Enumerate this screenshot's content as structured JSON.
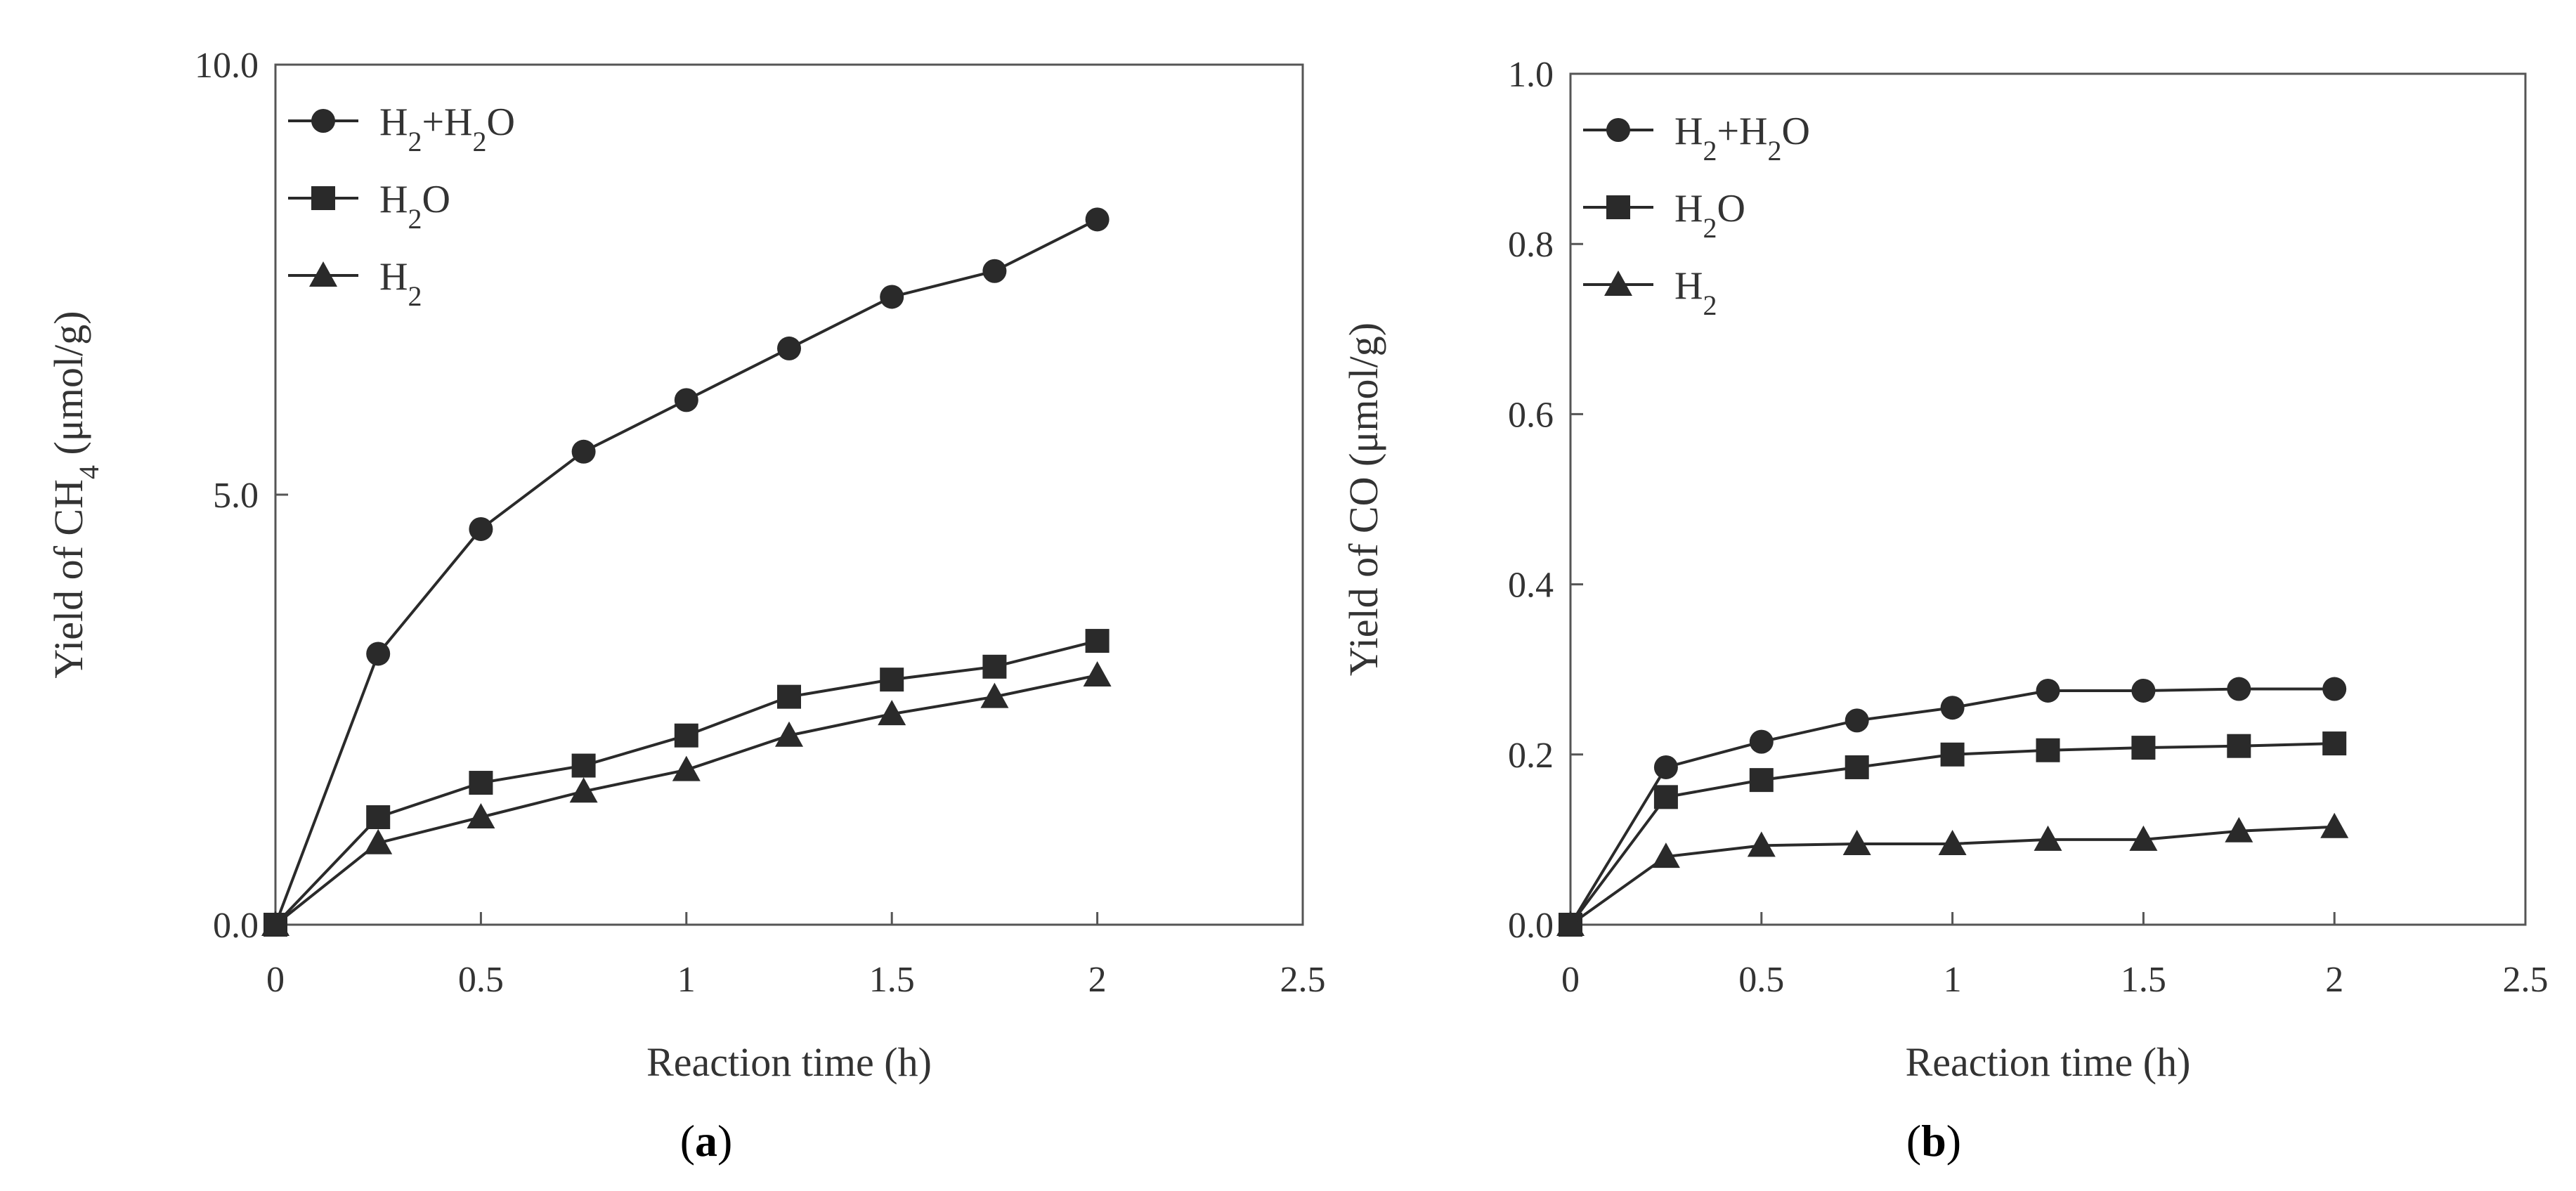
{
  "chart_data": [
    {
      "type": "line",
      "panel_label": "(a)",
      "x": [
        0,
        0.25,
        0.5,
        0.75,
        1,
        1.25,
        1.5,
        1.75,
        2
      ],
      "xlim": [
        0,
        2.5
      ],
      "ylim": [
        0,
        10
      ],
      "xticks": [
        "0",
        "0.5",
        "1",
        "1.5",
        "2",
        "2.5"
      ],
      "yticks": [
        "0.0",
        "5.0",
        "10.0"
      ],
      "xlabel": "Reaction time (h)",
      "ylabel": "Yield of CH4 (μmol/g)",
      "legend_position": "top-left",
      "series": [
        {
          "name": "H2+H2O",
          "marker": "circle",
          "values": [
            0,
            3.15,
            4.6,
            5.5,
            6.1,
            6.7,
            7.3,
            7.6,
            8.2
          ]
        },
        {
          "name": "H2O",
          "marker": "square",
          "values": [
            0,
            1.25,
            1.65,
            1.85,
            2.2,
            2.65,
            2.85,
            3.0,
            3.3
          ]
        },
        {
          "name": "H2",
          "marker": "triangle",
          "values": [
            0,
            0.95,
            1.25,
            1.55,
            1.8,
            2.2,
            2.45,
            2.65,
            2.9
          ]
        }
      ]
    },
    {
      "type": "line",
      "panel_label": "(b)",
      "x": [
        0,
        0.25,
        0.5,
        0.75,
        1,
        1.25,
        1.5,
        1.75,
        2
      ],
      "xlim": [
        0,
        2.5
      ],
      "ylim": [
        0,
        1.0
      ],
      "xticks": [
        "0",
        "0.5",
        "1",
        "1.5",
        "2",
        "2.5"
      ],
      "yticks": [
        "0.0",
        "0.2",
        "0.4",
        "0.6",
        "0.8",
        "1.0"
      ],
      "xlabel": "Reaction time (h)",
      "ylabel": "Yield of CO (μmol/g)",
      "legend_position": "top-left",
      "series": [
        {
          "name": "H2+H2O",
          "marker": "circle",
          "values": [
            0,
            0.185,
            0.215,
            0.24,
            0.255,
            0.275,
            0.275,
            0.277,
            0.277
          ]
        },
        {
          "name": "H2O",
          "marker": "square",
          "values": [
            0,
            0.15,
            0.17,
            0.185,
            0.2,
            0.205,
            0.208,
            0.21,
            0.213
          ]
        },
        {
          "name": "H2",
          "marker": "triangle",
          "values": [
            0,
            0.08,
            0.093,
            0.095,
            0.095,
            0.1,
            0.1,
            0.11,
            0.115
          ]
        }
      ]
    }
  ]
}
